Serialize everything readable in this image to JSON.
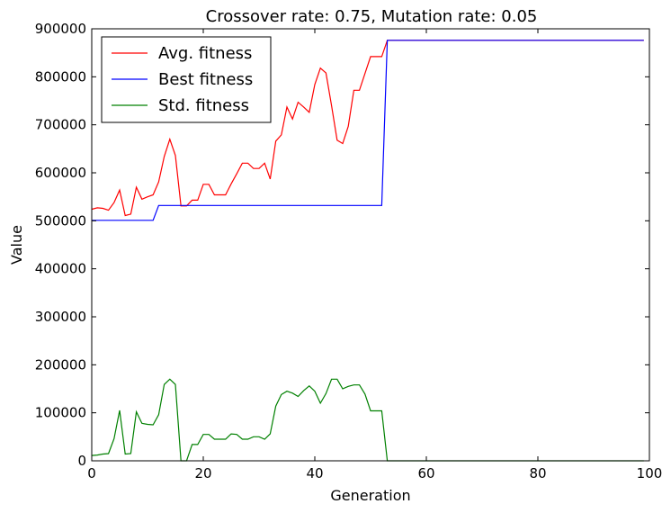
{
  "chart_data": {
    "type": "line",
    "title": "Crossover rate: 0.75, Mutation rate: 0.05",
    "xlabel": "Generation",
    "ylabel": "Value",
    "xlim": [
      0,
      100
    ],
    "ylim": [
      0,
      900000
    ],
    "xticks": [
      0,
      20,
      40,
      60,
      80,
      100
    ],
    "yticks": [
      0,
      100000,
      200000,
      300000,
      400000,
      500000,
      600000,
      700000,
      800000,
      900000
    ],
    "grid": false,
    "legend_position": "top-left",
    "x": [
      0,
      1,
      2,
      3,
      4,
      5,
      6,
      7,
      8,
      9,
      10,
      11,
      12,
      13,
      14,
      15,
      16,
      17,
      18,
      19,
      20,
      21,
      22,
      23,
      24,
      25,
      26,
      27,
      28,
      29,
      30,
      31,
      32,
      33,
      34,
      35,
      36,
      37,
      38,
      39,
      40,
      41,
      42,
      43,
      44,
      45,
      46,
      47,
      48,
      49,
      50,
      51,
      52,
      53,
      54,
      55,
      56,
      57,
      58,
      59,
      60,
      61,
      62,
      63,
      64,
      65,
      66,
      67,
      68,
      69,
      70,
      71,
      72,
      73,
      74,
      75,
      76,
      77,
      78,
      79,
      80,
      81,
      82,
      83,
      84,
      85,
      86,
      87,
      88,
      89,
      90,
      91,
      92,
      93,
      94,
      95,
      96,
      97,
      98,
      99
    ],
    "series": [
      {
        "name": "Avg. fitness",
        "color": "#ff0000",
        "values": [
          524000,
          527000,
          526000,
          522000,
          538000,
          564000,
          511000,
          514000,
          570000,
          545000,
          550000,
          554000,
          581000,
          634000,
          670000,
          636000,
          531000,
          531000,
          543000,
          543000,
          576000,
          576000,
          554000,
          554000,
          554000,
          577000,
          598000,
          620000,
          620000,
          609000,
          609000,
          620000,
          587000,
          666000,
          679000,
          737000,
          712000,
          747000,
          737000,
          726000,
          784000,
          818000,
          808000,
          740000,
          668000,
          661000,
          697000,
          772000,
          772000,
          807000,
          842000,
          842000,
          842000,
          876000,
          876000,
          876000,
          876000,
          876000,
          876000,
          876000,
          876000,
          876000,
          876000,
          876000,
          876000,
          876000,
          876000,
          876000,
          876000,
          876000,
          876000,
          876000,
          876000,
          876000,
          876000,
          876000,
          876000,
          876000,
          876000,
          876000,
          876000,
          876000,
          876000,
          876000,
          876000,
          876000,
          876000,
          876000,
          876000,
          876000,
          876000,
          876000,
          876000,
          876000,
          876000,
          876000,
          876000,
          876000,
          876000,
          876000
        ]
      },
      {
        "name": "Best fitness",
        "color": "#0000ff",
        "values": [
          501000,
          501000,
          501000,
          501000,
          501000,
          501000,
          501000,
          501000,
          501000,
          501000,
          501000,
          501000,
          532000,
          532000,
          532000,
          532000,
          532000,
          532000,
          532000,
          532000,
          532000,
          532000,
          532000,
          532000,
          532000,
          532000,
          532000,
          532000,
          532000,
          532000,
          532000,
          532000,
          532000,
          532000,
          532000,
          532000,
          532000,
          532000,
          532000,
          532000,
          532000,
          532000,
          532000,
          532000,
          532000,
          532000,
          532000,
          532000,
          532000,
          532000,
          532000,
          532000,
          532000,
          876000,
          876000,
          876000,
          876000,
          876000,
          876000,
          876000,
          876000,
          876000,
          876000,
          876000,
          876000,
          876000,
          876000,
          876000,
          876000,
          876000,
          876000,
          876000,
          876000,
          876000,
          876000,
          876000,
          876000,
          876000,
          876000,
          876000,
          876000,
          876000,
          876000,
          876000,
          876000,
          876000,
          876000,
          876000,
          876000,
          876000,
          876000,
          876000,
          876000,
          876000,
          876000,
          876000,
          876000,
          876000,
          876000,
          876000
        ]
      },
      {
        "name": "Std. fitness",
        "color": "#008000",
        "values": [
          11000,
          12000,
          14000,
          15000,
          46000,
          105000,
          14000,
          15000,
          102000,
          78000,
          76000,
          75000,
          96000,
          159000,
          170000,
          159000,
          0,
          0,
          34000,
          34000,
          55000,
          55000,
          45000,
          45000,
          45000,
          56000,
          55000,
          45000,
          45000,
          50000,
          50000,
          45000,
          56000,
          114000,
          138000,
          145000,
          141000,
          134000,
          146000,
          156000,
          145000,
          120000,
          140000,
          170000,
          170000,
          150000,
          155000,
          158000,
          158000,
          139000,
          104000,
          104000,
          104000,
          0,
          0,
          0,
          0,
          0,
          0,
          0,
          0,
          0,
          0,
          0,
          0,
          0,
          0,
          0,
          0,
          0,
          0,
          0,
          0,
          0,
          0,
          0,
          0,
          0,
          0,
          0,
          0,
          0,
          0,
          0,
          0,
          0,
          0,
          0,
          0,
          0,
          0,
          0,
          0,
          0,
          0,
          0,
          0,
          0,
          0,
          0
        ]
      }
    ]
  }
}
